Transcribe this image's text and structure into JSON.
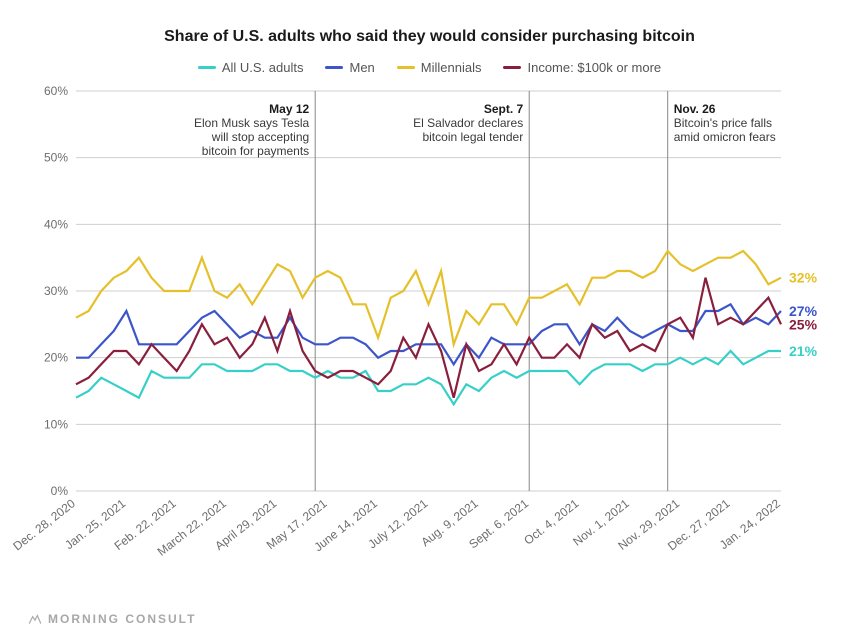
{
  "chart": {
    "type": "line",
    "title": "Share of U.S. adults who said they would consider purchasing bitcoin",
    "title_fontsize": 16,
    "background_color": "#ffffff",
    "grid_color": "#cfcfcf",
    "axis_text_color": "#6d6d6d",
    "line_width": 2.2,
    "ylim": [
      0,
      60
    ],
    "ytick_step": 10,
    "y_suffix": "%",
    "y_ticks": [
      0,
      10,
      20,
      30,
      40,
      50,
      60
    ],
    "x_labels": [
      "Dec. 28, 2020",
      "Jan. 25, 2021",
      "Feb. 22, 2021",
      "March 22, 2021",
      "April 29, 2021",
      "May 12",
      "May 17, 2021",
      "June 14, 2021",
      "July 12, 2021",
      "Aug. 9, 2021",
      "Sept. 6, 2021",
      "Sept. 7",
      "Oct. 4, 2021",
      "Nov. 1, 2021",
      "Nov. 26",
      "Nov. 29, 2021",
      "Dec. 27, 2021",
      "Jan. 24, 2022"
    ],
    "x_tick_labels": [
      "Dec. 28, 2020",
      "Jan. 25, 2021",
      "Feb. 22, 2021",
      "March 22, 2021",
      "April 29, 2021",
      "May 17, 2021",
      "June 14, 2021",
      "July 12, 2021",
      "Aug. 9, 2021",
      "Sept. 6, 2021",
      "Oct. 4, 2021",
      "Nov. 1, 2021",
      "Nov. 29, 2021",
      "Dec. 27, 2021",
      "Jan. 24, 2022"
    ],
    "legend": [
      {
        "key": "all",
        "label": "All U.S. adults",
        "color": "#37d0c8"
      },
      {
        "key": "men",
        "label": "Men",
        "color": "#3c55c9"
      },
      {
        "key": "mill",
        "label": "Millennials",
        "color": "#e6c02a"
      },
      {
        "key": "inc",
        "label": "Income: $100k or more",
        "color": "#8a1f3d"
      }
    ],
    "events": [
      {
        "x_label": "May 12",
        "title": "May 12",
        "text": "Elon Musk says Tesla will stop accepting bitcoin for payments",
        "align": "end"
      },
      {
        "x_label": "Sept. 7",
        "title": "Sept. 7",
        "text": "El Salvador declares bitcoin legal tender",
        "align": "end"
      },
      {
        "x_label": "Nov. 26",
        "title": "Nov. 26",
        "text": "Bitcoin's price falls amid omicron fears",
        "align": "start"
      }
    ],
    "series": {
      "all": [
        14,
        15,
        17,
        16,
        15,
        14,
        18,
        17,
        17,
        17,
        19,
        19,
        18,
        18,
        18,
        19,
        19,
        18,
        18,
        17,
        18,
        17,
        17,
        18,
        15,
        15,
        16,
        16,
        17,
        16,
        13,
        16,
        15,
        17,
        18,
        17,
        18,
        18,
        18,
        18,
        16,
        18,
        19,
        19,
        19,
        18,
        19,
        19,
        20,
        19,
        20,
        19,
        21,
        19,
        20,
        21,
        21
      ],
      "men": [
        20,
        20,
        22,
        24,
        27,
        22,
        22,
        22,
        22,
        24,
        26,
        27,
        25,
        23,
        24,
        23,
        23,
        26,
        23,
        22,
        22,
        23,
        23,
        22,
        20,
        21,
        21,
        22,
        22,
        22,
        19,
        22,
        20,
        23,
        22,
        22,
        22,
        24,
        25,
        25,
        22,
        25,
        24,
        26,
        24,
        23,
        24,
        25,
        24,
        24,
        27,
        27,
        28,
        25,
        26,
        25,
        27
      ],
      "mill": [
        26,
        27,
        30,
        32,
        33,
        35,
        32,
        30,
        30,
        30,
        35,
        30,
        29,
        31,
        28,
        31,
        34,
        33,
        29,
        32,
        33,
        32,
        28,
        28,
        23,
        29,
        30,
        33,
        28,
        33,
        22,
        27,
        25,
        28,
        28,
        25,
        29,
        29,
        30,
        31,
        28,
        32,
        32,
        33,
        33,
        32,
        33,
        36,
        34,
        33,
        34,
        35,
        35,
        36,
        34,
        31,
        32
      ],
      "inc": [
        16,
        17,
        19,
        21,
        21,
        19,
        22,
        20,
        18,
        21,
        25,
        22,
        23,
        20,
        22,
        26,
        21,
        27,
        21,
        18,
        17,
        18,
        18,
        17,
        16,
        18,
        23,
        20,
        25,
        21,
        14,
        22,
        18,
        19,
        22,
        19,
        23,
        20,
        20,
        22,
        20,
        25,
        23,
        24,
        21,
        22,
        21,
        25,
        26,
        23,
        32,
        25,
        26,
        25,
        27,
        29,
        25
      ]
    },
    "end_labels": {
      "all": "21%",
      "men": "27%",
      "mill": "32%",
      "inc": "25%"
    },
    "brand": "MORNING CONSULT"
  }
}
